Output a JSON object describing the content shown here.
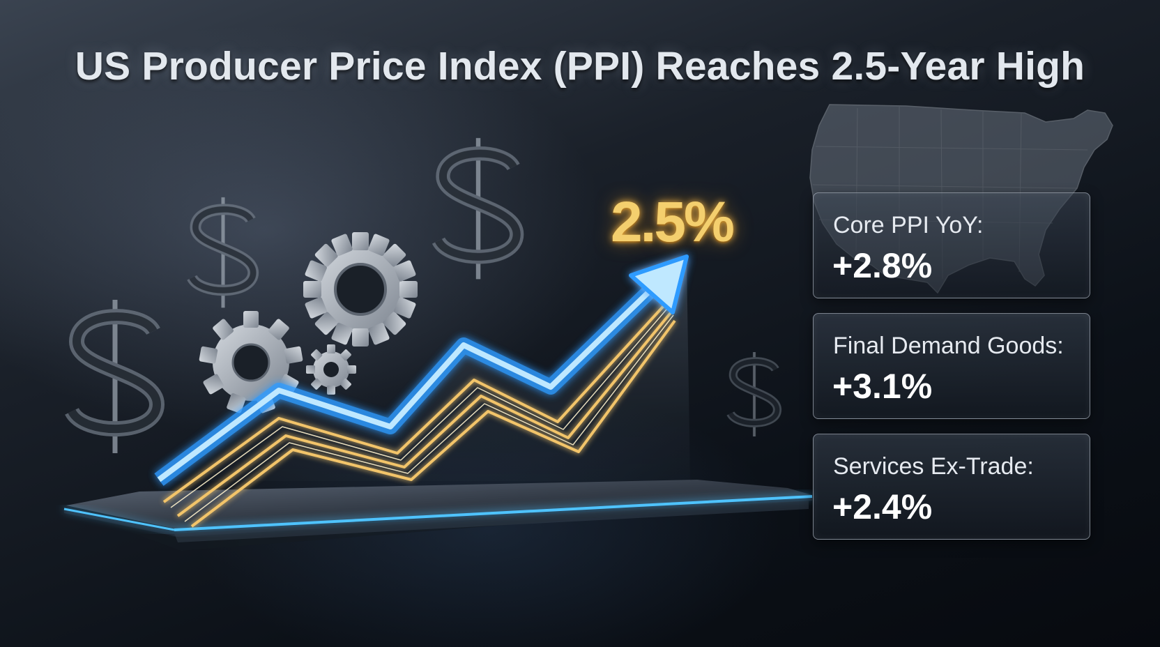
{
  "headline": "US Producer Price Index (PPI) Reaches 2.5-Year High",
  "highlight_value": "2.5%",
  "metrics": [
    {
      "label": "Core PPI YoY:",
      "value": "+2.8%"
    },
    {
      "label": "Final Demand Goods:",
      "value": "+3.1%"
    },
    {
      "label": "Services Ex-Trade:",
      "value": "+2.4%"
    }
  ],
  "icons": [
    "dollar-sign-icon",
    "gear-icon",
    "us-map-icon",
    "arrow-up-icon"
  ],
  "colors": {
    "background": "#0b0f16",
    "accent_blue": "#4fc3ff",
    "accent_gold": "#f4cf6e",
    "text": "#e3e8ee"
  }
}
